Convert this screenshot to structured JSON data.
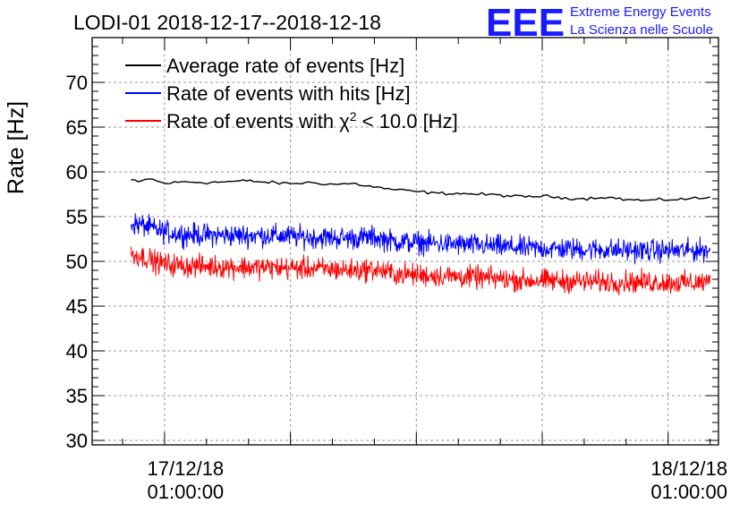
{
  "header": {
    "title": "LODI-01 2018-12-17--2018-12-18",
    "logo_letters": "EEE",
    "logo_line1": "Extreme Energy Events",
    "logo_line2": "La Scienza nelle Scuole"
  },
  "colors": {
    "average": "#000000",
    "hits": "#0000ff",
    "chi2": "#ff0000",
    "logo": "#1a1aff",
    "grid": "#9a9a9a"
  },
  "chart_data": {
    "type": "line",
    "ylabel": "Rate [Hz]",
    "ylim": [
      29.5,
      75
    ],
    "yticks": [
      30,
      35,
      40,
      45,
      50,
      55,
      60,
      65,
      70
    ],
    "x_unit": "hours since 2018-12-16 00:00",
    "xlim": [
      20.55,
      50.4
    ],
    "xticks": [
      {
        "x": 25,
        "line1": "17/12/18",
        "line2": "01:00:00"
      },
      {
        "x": 49,
        "line1": "18/12/18",
        "line2": "01:00:00"
      }
    ],
    "grid": true,
    "legend_position": "top-left",
    "series": [
      {
        "name": "Average rate of events [Hz]",
        "name_prefix": "Rate of events with ",
        "noise": 0.18,
        "x": [
          22.4,
          22.8,
          23.2,
          23.6,
          24.0,
          25.0,
          26.0,
          27.0,
          28.0,
          29.0,
          30.0,
          31.0,
          32.0,
          33.0,
          33.5,
          34.0,
          35.0,
          36.0,
          37.0,
          38.0,
          39.0,
          40.0,
          41.0,
          42.0,
          43.0,
          44.0,
          45.0,
          46.0,
          47.0,
          48.0,
          49.0,
          50.0,
          50.0
        ],
        "y": [
          59.1,
          58.8,
          59.3,
          59.0,
          58.7,
          58.9,
          58.8,
          58.9,
          59.0,
          58.8,
          58.7,
          58.8,
          58.6,
          58.7,
          58.5,
          58.3,
          58.0,
          57.8,
          57.6,
          57.6,
          57.5,
          57.4,
          57.2,
          57.3,
          57.1,
          57.0,
          57.2,
          56.9,
          56.8,
          56.9,
          57.0,
          57.1,
          57.2
        ]
      },
      {
        "name": "Rate of events with hits [Hz]",
        "noise": 1.3,
        "x": [
          22.4,
          23.0,
          23.5,
          24.0,
          25.0,
          27.0,
          29.0,
          31.0,
          33.0,
          34.0,
          35.0,
          37.0,
          39.0,
          41.0,
          43.0,
          45.0,
          47.0,
          49.0,
          50.0
        ],
        "y": [
          54.3,
          54.0,
          53.6,
          53.3,
          53.0,
          52.9,
          52.9,
          52.7,
          52.6,
          52.7,
          52.2,
          52.0,
          51.8,
          51.5,
          51.4,
          51.3,
          51.2,
          51.2,
          51.3
        ]
      },
      {
        "name": "Rate of events with χ² < 10.0 [Hz]",
        "name_base": "Rate of events with χ",
        "name_sup": "2",
        "name_rest": " < 10.0 [Hz]",
        "noise": 1.3,
        "x": [
          22.4,
          23.0,
          23.5,
          24.0,
          25.0,
          27.0,
          29.0,
          31.0,
          33.0,
          34.0,
          35.0,
          37.0,
          39.0,
          41.0,
          43.0,
          45.0,
          47.0,
          49.0,
          50.0
        ],
        "y": [
          50.8,
          50.5,
          50.0,
          49.7,
          49.5,
          49.4,
          49.3,
          49.2,
          49.0,
          49.1,
          48.6,
          48.4,
          48.2,
          47.9,
          47.8,
          47.7,
          47.7,
          47.6,
          47.7
        ]
      }
    ]
  }
}
